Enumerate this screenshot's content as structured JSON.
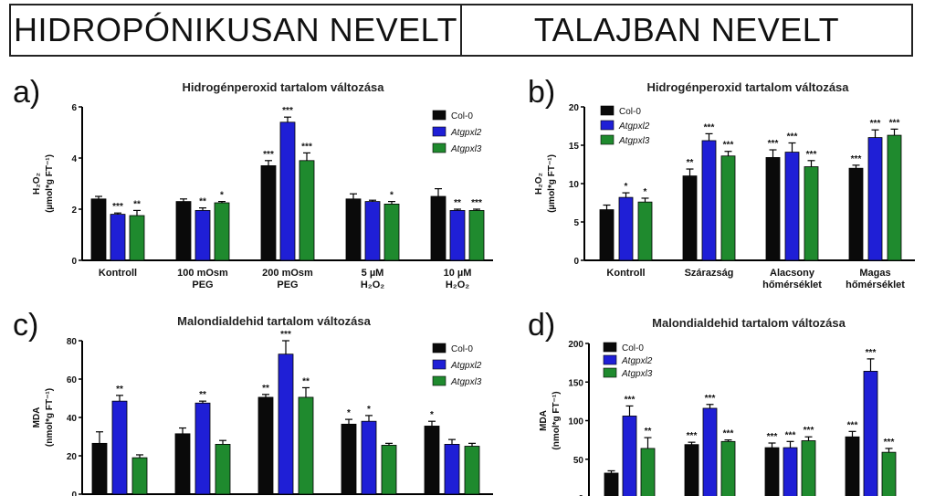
{
  "header": {
    "left_title": "HIDROPÓNIKUSAN NEVELT",
    "right_title": "TALAJBAN NEVELT"
  },
  "colors": {
    "Col-0": "#0a0a0a",
    "Atgpxl2": "#1f1fd6",
    "Atgpxl3": "#1f8a2e"
  },
  "chart_data": [
    {
      "panel": "a)",
      "type": "bar",
      "title": "Hidrogénperoxid tartalom változása",
      "ylabel_line1": "H₂O₂",
      "ylabel_line2": "(µmol*g FT⁻¹)",
      "ylim": [
        0,
        6
      ],
      "yticks": [
        "0",
        "2",
        "4",
        "6"
      ],
      "categories": [
        [
          "Kontroll"
        ],
        [
          "100 mOsm",
          "PEG"
        ],
        [
          "200 mOsm",
          "PEG"
        ],
        [
          "5 µM",
          "H₂O₂"
        ],
        [
          "10 µM",
          "H₂O₂"
        ]
      ],
      "series": [
        {
          "name": "Col-0",
          "values": [
            2.4,
            2.3,
            3.7,
            2.4,
            2.5
          ],
          "errors": [
            0.1,
            0.1,
            0.2,
            0.2,
            0.3
          ],
          "sig": [
            "",
            "",
            "***",
            "",
            ""
          ]
        },
        {
          "name": "Atgpxl2",
          "values": [
            1.8,
            1.95,
            5.4,
            2.3,
            1.95
          ],
          "errors": [
            0.05,
            0.1,
            0.2,
            0.05,
            0.05
          ],
          "sig": [
            "***",
            "**",
            "***",
            "",
            "**"
          ]
        },
        {
          "name": "Atgpxl3",
          "values": [
            1.75,
            2.25,
            3.9,
            2.2,
            1.95
          ],
          "errors": [
            0.2,
            0.05,
            0.3,
            0.1,
            0.05
          ],
          "sig": [
            "**",
            "*",
            "***",
            "*",
            "***"
          ]
        }
      ]
    },
    {
      "panel": "b)",
      "type": "bar",
      "title": "Hidrogénperoxid tartalom változása",
      "ylabel_line1": "H₂O₂",
      "ylabel_line2": "(µmol*g FT⁻¹)",
      "ylim": [
        0,
        20
      ],
      "yticks": [
        "0",
        "5",
        "10",
        "15",
        "20"
      ],
      "categories": [
        [
          "Kontroll"
        ],
        [
          "Szárazság"
        ],
        [
          "Alacsony",
          "hőmérséklet"
        ],
        [
          "Magas",
          "hőmérséklet"
        ]
      ],
      "series": [
        {
          "name": "Col-0",
          "values": [
            6.6,
            11.0,
            13.4,
            12.0
          ],
          "errors": [
            0.6,
            0.9,
            1.0,
            0.4
          ],
          "sig": [
            "",
            "**",
            "***",
            "***"
          ]
        },
        {
          "name": "Atgpxl2",
          "values": [
            8.2,
            15.6,
            14.1,
            16.0
          ],
          "errors": [
            0.6,
            0.9,
            1.2,
            1.0
          ],
          "sig": [
            "*",
            "***",
            "***",
            "***"
          ]
        },
        {
          "name": "Atgpxl3",
          "values": [
            7.6,
            13.6,
            12.2,
            16.3
          ],
          "errors": [
            0.5,
            0.6,
            0.8,
            0.8
          ],
          "sig": [
            "*",
            "***",
            "***",
            "***"
          ]
        }
      ]
    },
    {
      "panel": "c)",
      "type": "bar",
      "title": "Malondialdehid tartalom változása",
      "ylabel_line1": "MDA",
      "ylabel_line2": "(nmol*g FT⁻¹)",
      "ylim": [
        0,
        80
      ],
      "yticks": [
        "0",
        "20",
        "40",
        "60",
        "80"
      ],
      "categories": [
        [
          ""
        ],
        [
          ""
        ],
        [
          ""
        ],
        [
          ""
        ],
        [
          ""
        ]
      ],
      "series": [
        {
          "name": "Col-0",
          "values": [
            26.5,
            31.5,
            50.5,
            36.5,
            35.5
          ],
          "errors": [
            6,
            3,
            1.5,
            2.5,
            2.5
          ],
          "sig": [
            "",
            "",
            "**",
            "*",
            "*"
          ]
        },
        {
          "name": "Atgpxl2",
          "values": [
            48.5,
            47.5,
            73,
            38,
            26
          ],
          "errors": [
            3,
            1,
            7,
            3,
            2.5
          ],
          "sig": [
            "**",
            "**",
            "***",
            "*",
            ""
          ]
        },
        {
          "name": "Atgpxl3",
          "values": [
            19,
            26,
            50.5,
            25.5,
            25
          ],
          "errors": [
            1.5,
            2,
            5,
            1,
            1.5
          ],
          "sig": [
            "",
            "",
            "**",
            "",
            ""
          ]
        }
      ]
    },
    {
      "panel": "d)",
      "type": "bar",
      "title": "Malondialdehid tartalom változása",
      "ylabel_line1": "MDA",
      "ylabel_line2": "(nmol*g FT⁻¹)",
      "ylim": [
        0,
        200
      ],
      "yticks": [
        "0",
        "50",
        "100",
        "150",
        "200"
      ],
      "categories": [
        [
          ""
        ],
        [
          ""
        ],
        [
          ""
        ],
        [
          ""
        ]
      ],
      "series": [
        {
          "name": "Col-0",
          "values": [
            32,
            69,
            65,
            79
          ],
          "errors": [
            3,
            3,
            6,
            7
          ],
          "sig": [
            "",
            "***",
            "***",
            "***"
          ]
        },
        {
          "name": "Atgpxl2",
          "values": [
            106,
            116,
            65,
            164
          ],
          "errors": [
            13,
            5,
            8,
            16
          ],
          "sig": [
            "***",
            "***",
            "***",
            "***"
          ]
        },
        {
          "name": "Atgpxl3",
          "values": [
            64,
            73,
            74,
            59
          ],
          "errors": [
            14,
            2,
            5,
            5
          ],
          "sig": [
            "**",
            "***",
            "***",
            "***"
          ]
        }
      ]
    }
  ]
}
